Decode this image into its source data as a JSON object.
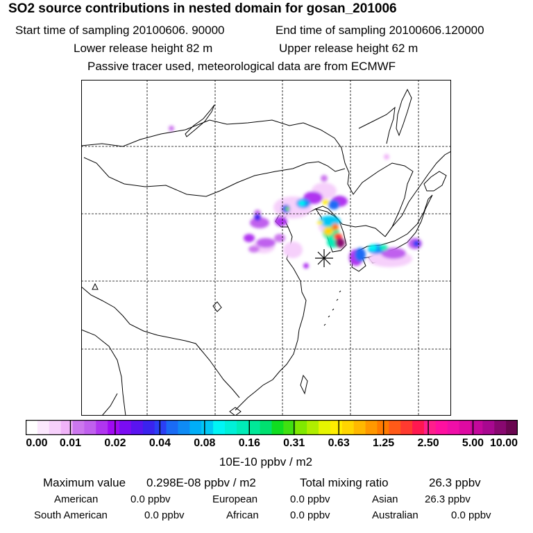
{
  "header": {
    "title": "SO2 source contributions in nested domain for gosan_201006",
    "start_time": "Start time of sampling 20100606. 90000",
    "end_time": "End time of sampling 20100606.120000",
    "lower_height": "Lower release height   82 m",
    "upper_height": "Upper release height   62 m",
    "note": "Passive tracer used, meteorological data are from ECMWF"
  },
  "map": {
    "receptor_marker": "asterisk-icon",
    "receptor_name": "gosan"
  },
  "colorbar": {
    "ticks": [
      "0.00",
      "0.01",
      "0.02",
      "0.04",
      "0.08",
      "0.16",
      "0.31",
      "0.63",
      "1.25",
      "2.50",
      "5.00",
      "10.00"
    ],
    "units": "10E-10 ppbv / m2",
    "colors": [
      "#ffffff",
      "#fbe8fd",
      "#f6d0fb",
      "#f0b3f8",
      "#cc77ee",
      "#c060ee",
      "#b035f0",
      "#a00af3",
      "#7a0cf3",
      "#5a14f0",
      "#3a23ee",
      "#2a3ff5",
      "#1a6bf5",
      "#0f8bf5",
      "#00aef7",
      "#00c8f5",
      "#00f5f5",
      "#00f0d8",
      "#00ecb8",
      "#00e898",
      "#00e070",
      "#10dd20",
      "#40e010",
      "#80e800",
      "#b0ee00",
      "#e6f500",
      "#ffee00",
      "#ffd500",
      "#ffb800",
      "#ff9800",
      "#ff7a00",
      "#ff5a18",
      "#ff3a30",
      "#ff1850",
      "#ff1e8c",
      "#ff10a0",
      "#f00ea8",
      "#de0aa2",
      "#c4089c",
      "#a80890",
      "#880870",
      "#6a0650"
    ]
  },
  "footer": {
    "max_label": "Maximum value",
    "max_value": "0.298E-08 ppbv / m2",
    "total_label": "Total mixing ratio",
    "total_value": "26.3 ppbv",
    "regions": [
      {
        "name": "American",
        "value": "0.0 ppbv"
      },
      {
        "name": "European",
        "value": "0.0 ppbv"
      },
      {
        "name": "Asian",
        "value": "26.3 ppbv"
      },
      {
        "name": "South American",
        "value": "0.0 ppbv"
      },
      {
        "name": "African",
        "value": "0.0 ppbv"
      },
      {
        "name": "Australian",
        "value": "0.0 ppbv"
      }
    ]
  }
}
